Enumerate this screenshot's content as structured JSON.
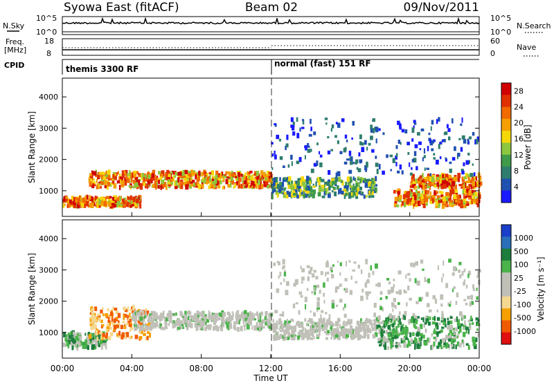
{
  "header": {
    "title": "Syowa East (fitACF)",
    "beam": "Beam 02",
    "date": "09/Nov/2011"
  },
  "noise_panel": {
    "left_label": "N.Sky",
    "left_ticks": [
      "10^5",
      "10^0"
    ],
    "right_ticks": [
      "10^5",
      "10^0"
    ],
    "right_label": "N.Search"
  },
  "freq_panel": {
    "left_label_line1": "Freq.",
    "left_label_line2": "[MHz]",
    "left_ticks": [
      "18",
      "8"
    ],
    "right_ticks": [
      "60",
      "0"
    ],
    "right_label": "Nave"
  },
  "cpid_panel": {
    "label": "CPID",
    "modes": [
      {
        "name": "themis 3300 RF",
        "start_hour": 0
      },
      {
        "name": "normal (fast) 151 RF",
        "start_hour": 12
      }
    ]
  },
  "colors": {
    "power_scale": [
      "#1a1aff",
      "#2050b0",
      "#2e7d6e",
      "#3f9a4a",
      "#8dc63f",
      "#f5d80a",
      "#f5a000",
      "#f06a00",
      "#e03000",
      "#d00000"
    ],
    "velocity_scale": [
      "#e01010",
      "#f05a00",
      "#f5a000",
      "#f5d890",
      "#c0c0b8",
      "#c0c0b8",
      "#4ab34a",
      "#1d7d3c",
      "#2a6fb8",
      "#1a3fc8"
    ]
  },
  "chart_data": [
    {
      "type": "heatmap",
      "title": "",
      "xlabel": "Time UT",
      "ylabel": "Slant Range [km]",
      "xlim_hours": [
        0,
        24
      ],
      "ylim_km": [
        180,
        4600
      ],
      "x_ticks": [
        "00:00",
        "04:00",
        "08:00",
        "12:00",
        "16:00",
        "20:00",
        "00:00"
      ],
      "y_ticks": [
        1000,
        2000,
        3000,
        4000
      ],
      "colorbar": {
        "label": "Power [dB]",
        "range": [
          0,
          30
        ],
        "ticks": [
          4,
          8,
          12,
          16,
          20,
          24,
          28
        ]
      },
      "echo_regions": [
        {
          "t_start": 0.0,
          "t_end": 4.5,
          "r_start": 500,
          "r_end": 800,
          "value_level": "high"
        },
        {
          "t_start": 1.5,
          "t_end": 12.0,
          "r_start": 1100,
          "r_end": 1600,
          "value_level": "high"
        },
        {
          "t_start": 12.0,
          "t_end": 18.0,
          "r_start": 800,
          "r_end": 1400,
          "value_level": "medium"
        },
        {
          "t_start": 19.0,
          "t_end": 24.0,
          "r_start": 500,
          "r_end": 1000,
          "value_level": "high"
        },
        {
          "t_start": 20.0,
          "t_end": 24.0,
          "r_start": 1100,
          "r_end": 1500,
          "value_level": "high"
        },
        {
          "t_start": 12.0,
          "t_end": 24.0,
          "r_start": 1500,
          "r_end": 3300,
          "value_level": "low"
        }
      ]
    },
    {
      "type": "heatmap",
      "title": "",
      "xlabel": "Time UT",
      "ylabel": "Slant Range [km]",
      "xlim_hours": [
        0,
        24
      ],
      "ylim_km": [
        180,
        4600
      ],
      "x_ticks": [
        "00:00",
        "04:00",
        "08:00",
        "12:00",
        "16:00",
        "20:00",
        "00:00"
      ],
      "y_ticks": [
        1000,
        2000,
        3000,
        4000
      ],
      "colorbar": {
        "label": "Velocity [m s⁻¹]",
        "range": [
          -1200,
          1200
        ],
        "ticks": [
          1000,
          500,
          100,
          25,
          -25,
          -100,
          -500,
          -1000
        ]
      },
      "echo_regions": [
        {
          "t_start": 0.0,
          "t_end": 2.5,
          "r_start": 500,
          "r_end": 1000,
          "value_level": "green"
        },
        {
          "t_start": 1.5,
          "t_end": 5.0,
          "r_start": 800,
          "r_end": 1800,
          "value_level": "orange"
        },
        {
          "t_start": 4.0,
          "t_end": 12.0,
          "r_start": 1100,
          "r_end": 1650,
          "value_level": "grey"
        },
        {
          "t_start": 12.0,
          "t_end": 18.0,
          "r_start": 800,
          "r_end": 1400,
          "value_level": "grey"
        },
        {
          "t_start": 18.0,
          "t_end": 24.0,
          "r_start": 500,
          "r_end": 1500,
          "value_level": "green"
        },
        {
          "t_start": 12.0,
          "t_end": 24.0,
          "r_start": 1500,
          "r_end": 3300,
          "value_level": "grey"
        }
      ]
    }
  ]
}
